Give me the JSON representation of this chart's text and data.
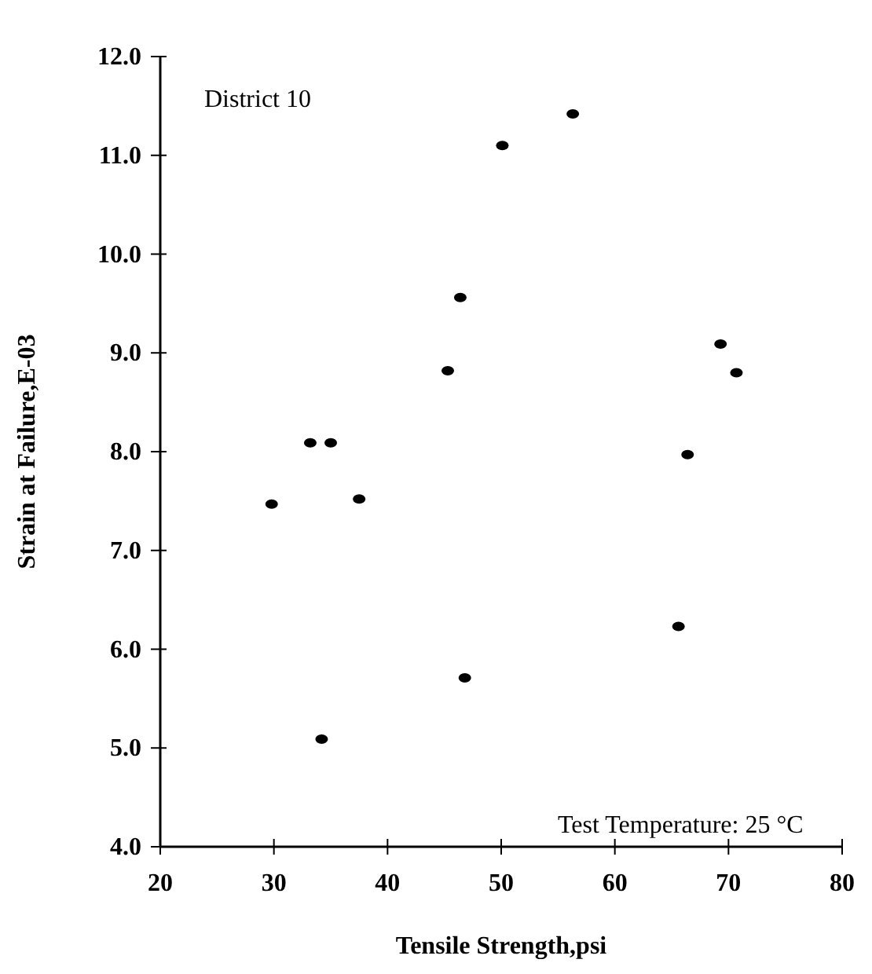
{
  "chart_data": {
    "type": "scatter",
    "xlabel": "Tensile Strength,psi",
    "ylabel": "Strain at Failure,E-03",
    "annotations": [
      "District 10",
      "Test Temperature: 25 °C"
    ],
    "x": [
      29.8,
      33.2,
      35.0,
      37.5,
      34.2,
      45.3,
      46.4,
      46.8,
      50.1,
      56.3,
      69.3,
      70.7,
      66.4,
      65.6
    ],
    "series": [
      {
        "color": "#000000",
        "values": [
          7.47,
          8.09,
          8.09,
          7.52,
          5.09,
          8.82,
          9.56,
          5.71,
          11.1,
          11.42,
          9.09,
          8.8,
          7.97,
          6.23
        ]
      }
    ],
    "xlim": [
      20,
      80
    ],
    "xticks": [
      20,
      30,
      40,
      50,
      60,
      70,
      80
    ],
    "ylim": [
      4,
      12
    ],
    "yticks": [
      {
        "value": 4,
        "label": "4.0"
      },
      {
        "value": 5,
        "label": "5.0"
      },
      {
        "value": 6,
        "label": "6.0"
      },
      {
        "value": 7,
        "label": "7.0"
      },
      {
        "value": 8,
        "label": "8.0"
      },
      {
        "value": 9,
        "label": "9.0"
      },
      {
        "value": 10,
        "label": "10.0"
      },
      {
        "value": 11,
        "label": "11.0"
      },
      {
        "value": 12,
        "label": "12.0"
      }
    ],
    "marker": "circle",
    "grid": false
  }
}
